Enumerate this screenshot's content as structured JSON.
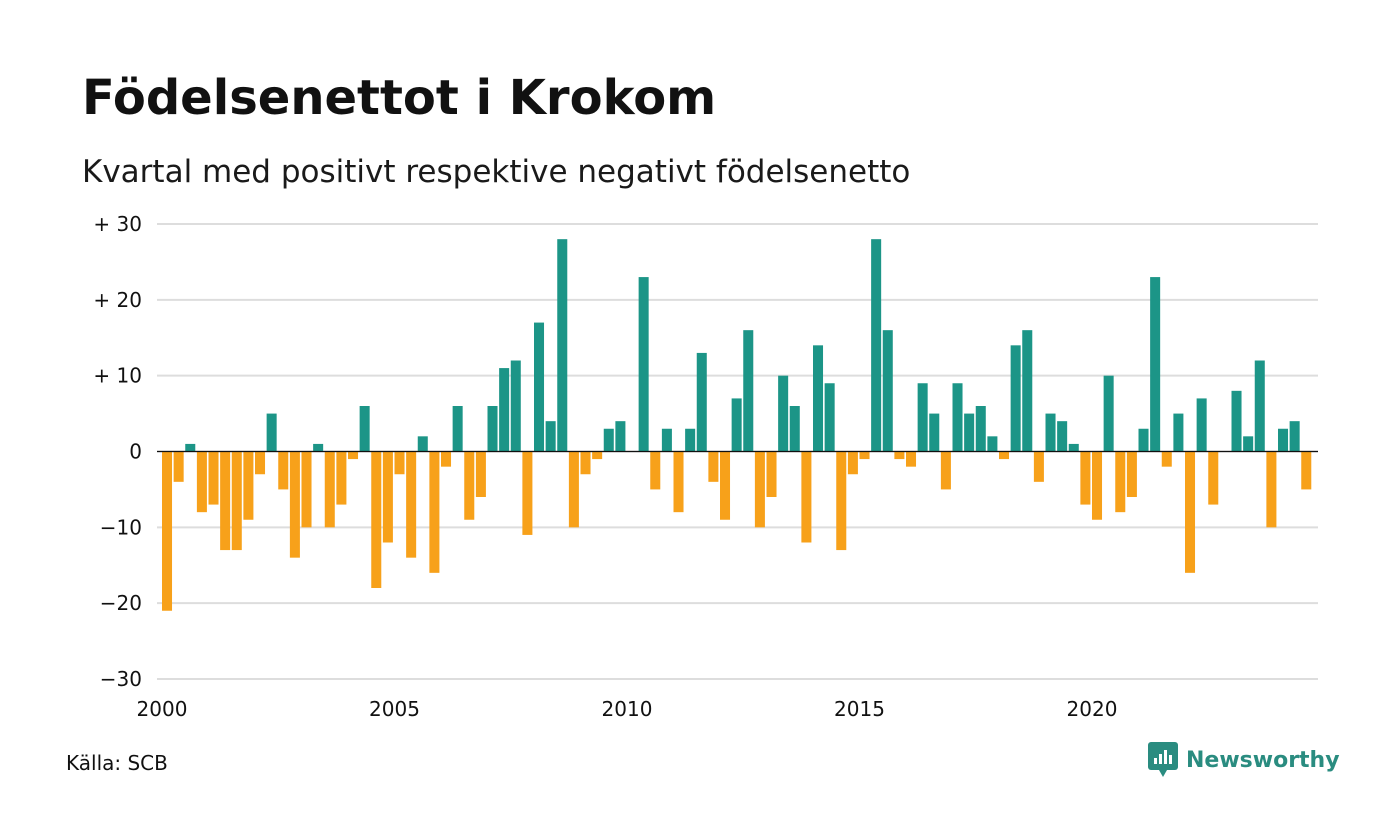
{
  "header": {
    "title": "Födelsenettot i Krokom",
    "subtitle": "Kvartal med positivt respektive negativt födelsenetto"
  },
  "footer": {
    "source": "Källa: SCB",
    "brand": "Newsworthy",
    "brand_icon": "newsworthy-logo-icon"
  },
  "colors": {
    "positive": "#1c9587",
    "negative": "#f7a11a",
    "grid": "#dddddd",
    "brand": "#2a8c80"
  },
  "chart_data": {
    "type": "bar",
    "title": "Födelsenettot i Krokom",
    "subtitle": "Kvartal med positivt respektive negativt födelsenetto",
    "xlabel": "",
    "ylabel": "",
    "ylim": [
      -30,
      30
    ],
    "yticks": [
      {
        "value": 30,
        "label": "+ 30"
      },
      {
        "value": 20,
        "label": "+ 20"
      },
      {
        "value": 10,
        "label": "+ 10"
      },
      {
        "value": 0,
        "label": "0"
      },
      {
        "value": -10,
        "label": "−10"
      },
      {
        "value": -20,
        "label": "−20"
      },
      {
        "value": -30,
        "label": "−30"
      }
    ],
    "xticks": [
      "2000",
      "2005",
      "2010",
      "2015",
      "2020"
    ],
    "first_year": 2000,
    "periods_per_year": 4,
    "grid": true,
    "values": [
      -21,
      -4,
      1,
      -8,
      -7,
      -13,
      -13,
      -9,
      -3,
      5,
      -5,
      -14,
      -10,
      1,
      -10,
      -7,
      -1,
      6,
      -18,
      -12,
      -3,
      -14,
      2,
      -16,
      -2,
      6,
      -9,
      -6,
      6,
      11,
      12,
      -11,
      17,
      4,
      28,
      -10,
      -3,
      -1,
      3,
      4,
      0,
      23,
      -5,
      3,
      -8,
      3,
      13,
      -4,
      -9,
      7,
      16,
      -10,
      -6,
      10,
      6,
      -12,
      14,
      9,
      -13,
      -3,
      -1,
      28,
      16,
      -1,
      -2,
      9,
      5,
      -5,
      9,
      5,
      6,
      2,
      -1,
      14,
      16,
      -4,
      5,
      4,
      1,
      -7,
      -9,
      10,
      -8,
      -6,
      3,
      23,
      -2,
      5,
      -16,
      7,
      -7,
      0,
      8,
      2,
      12,
      -10,
      3,
      4,
      -5
    ]
  }
}
